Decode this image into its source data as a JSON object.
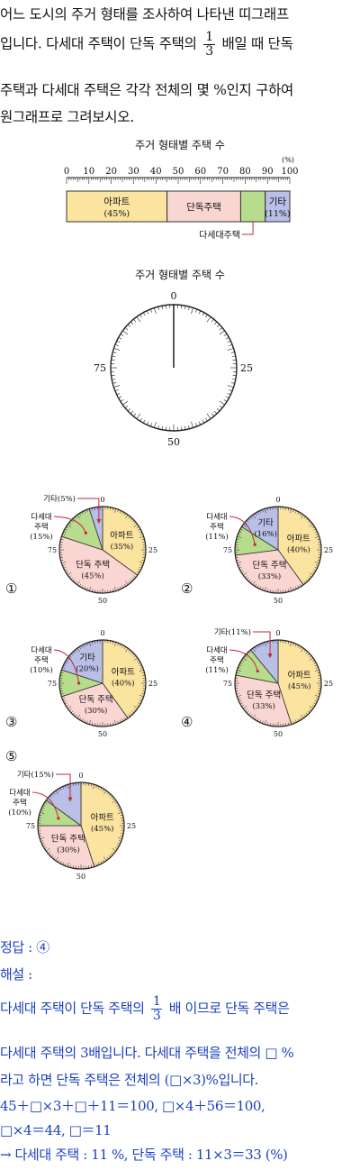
{
  "question": {
    "line1": "어느 도시의 주거 형태를 조사하여 나타낸 띠그래프",
    "line2_pre": "입니다. 다세대 주택이 단독 주택의",
    "frac_num": "1",
    "frac_den": "3",
    "line2_post": "배일 때 단독",
    "line3": "주택과 다세대 주택은 각각 전체의 몇 %인지 구하여",
    "line4": "원그래프로 그려보시오."
  },
  "band": {
    "title": "주거 형태별 주택 수",
    "unit": "(%)",
    "ticks": [
      "0",
      "10",
      "20",
      "30",
      "40",
      "50",
      "60",
      "70",
      "80",
      "90",
      "100"
    ],
    "segments": [
      {
        "name": "아파트",
        "pct_label": "(45%)",
        "value": 45,
        "color": "#fbe3a0"
      },
      {
        "name": "단독주택",
        "pct_label": "",
        "value": 33,
        "color": "#f9d6d2"
      },
      {
        "name": "",
        "pct_label": "",
        "value": 11,
        "color": "#b8dc8e"
      },
      {
        "name": "기타",
        "pct_label": "(11%)",
        "value": 11,
        "color": "#b9bfe6"
      }
    ],
    "callout": "다세대주택"
  },
  "empty_pie": {
    "title": "주거 형태별 주택 수",
    "labels": [
      "0",
      "25",
      "50",
      "75"
    ]
  },
  "options": [
    {
      "marker": "①",
      "slices": [
        {
          "v": 35,
          "c": "#fbe3a0"
        },
        {
          "v": 45,
          "c": "#f9d6d2"
        },
        {
          "v": 15,
          "c": "#b8dc8e"
        },
        {
          "v": 5,
          "c": "#b9bfe6"
        }
      ],
      "in_labels": [
        {
          "t1": "아파트",
          "t2": "(35%)"
        },
        {
          "t1": "단독 주택",
          "t2": "(45%)"
        }
      ],
      "out_labels": [
        {
          "t1": "기타(5%)"
        },
        {
          "t1": "다세대",
          "t2": "주택",
          "t3": "(15%)"
        }
      ]
    },
    {
      "marker": "②",
      "slices": [
        {
          "v": 40,
          "c": "#fbe3a0"
        },
        {
          "v": 33,
          "c": "#f9d6d2"
        },
        {
          "v": 11,
          "c": "#b8dc8e"
        },
        {
          "v": 16,
          "c": "#b9bfe6"
        }
      ],
      "in_labels": [
        {
          "t1": "아파트",
          "t2": "(40%)"
        },
        {
          "t1": "단독 주택",
          "t2": "(33%)"
        },
        {
          "t1": "기타",
          "t2": "(16%)"
        }
      ],
      "out_labels": [
        {
          "t1": "다세대",
          "t2": "주택",
          "t3": "(11%)"
        }
      ]
    },
    {
      "marker": "③",
      "slices": [
        {
          "v": 40,
          "c": "#fbe3a0"
        },
        {
          "v": 30,
          "c": "#f9d6d2"
        },
        {
          "v": 10,
          "c": "#b8dc8e"
        },
        {
          "v": 20,
          "c": "#b9bfe6"
        }
      ],
      "in_labels": [
        {
          "t1": "아파트",
          "t2": "(40%)"
        },
        {
          "t1": "단독 주택",
          "t2": "(30%)"
        },
        {
          "t1": "기타",
          "t2": "(20%)"
        }
      ],
      "out_labels": [
        {
          "t1": "다세대",
          "t2": "주택",
          "t3": "(10%)"
        }
      ]
    },
    {
      "marker": "④",
      "slices": [
        {
          "v": 45,
          "c": "#fbe3a0"
        },
        {
          "v": 33,
          "c": "#f9d6d2"
        },
        {
          "v": 11,
          "c": "#b8dc8e"
        },
        {
          "v": 11,
          "c": "#b9bfe6"
        }
      ],
      "in_labels": [
        {
          "t1": "아파트",
          "t2": "(45%)"
        },
        {
          "t1": "단독 주택",
          "t2": "(33%)"
        }
      ],
      "out_labels": [
        {
          "t1": "기타(11%)"
        },
        {
          "t1": "다세대",
          "t2": "주택",
          "t3": "(11%)"
        }
      ]
    },
    {
      "marker": "⑤",
      "slices": [
        {
          "v": 45,
          "c": "#fbe3a0"
        },
        {
          "v": 30,
          "c": "#f9d6d2"
        },
        {
          "v": 10,
          "c": "#b8dc8e"
        },
        {
          "v": 15,
          "c": "#b9bfe6"
        }
      ],
      "in_labels": [
        {
          "t1": "아파트",
          "t2": "(45%)"
        },
        {
          "t1": "단독 주택",
          "t2": "(30%)"
        }
      ],
      "out_labels": [
        {
          "t1": "기타(15%)"
        },
        {
          "t1": "다세대",
          "t2": "주택",
          "t3": "(10%)"
        }
      ]
    }
  ],
  "answer": {
    "label": "정답 : ④",
    "exp_label": "해설 :",
    "e1_pre": "다세대 주택이 단독 주택의",
    "e1_post": "배 이므로 단독 주택은",
    "e2": "다세대 주택의 3배입니다. 다세대 주택을 전체의 □ %",
    "e3": "라고 하면 단독 주택은 전체의 (□×3)%입니다.",
    "e4": "45＋□×3＋□＋11＝100, □×4＋56＝100,",
    "e5": "□×4＝44, □＝11",
    "e6": "→ 다세대 주택 : 11 %, 단독 주택 : 11×3＝33 (%)"
  }
}
